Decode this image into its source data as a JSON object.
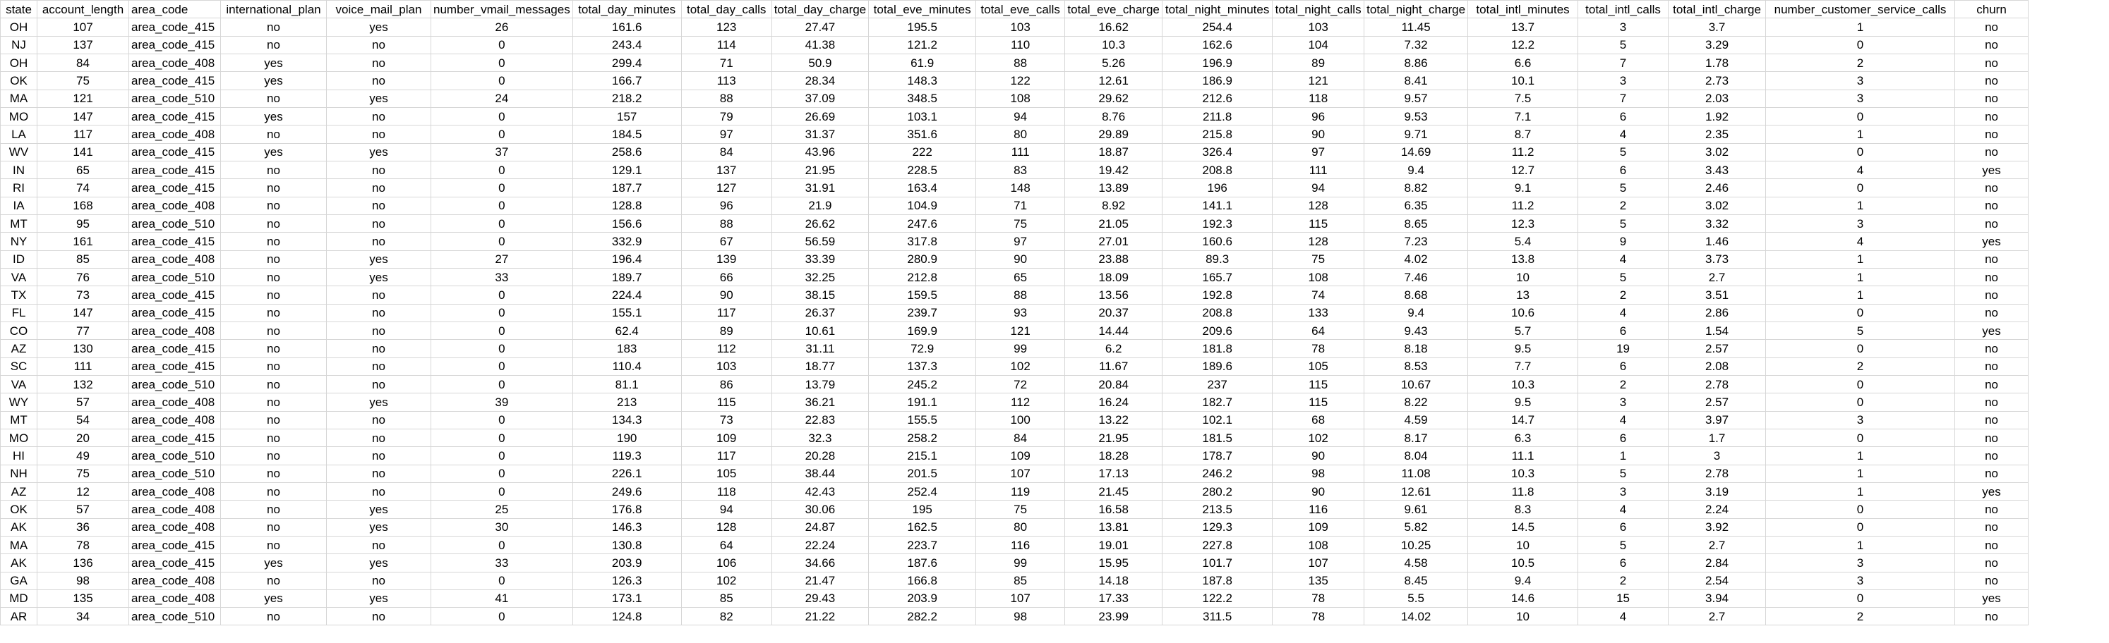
{
  "headers": [
    "state",
    "account_length",
    "area_code",
    "international_plan",
    "voice_mail_plan",
    "number_vmail_messages",
    "total_day_minutes",
    "total_day_calls",
    "total_day_charge",
    "total_eve_minutes",
    "total_eve_calls",
    "total_eve_charge",
    "total_night_minutes",
    "total_night_calls",
    "total_night_charge",
    "total_intl_minutes",
    "total_intl_calls",
    "total_intl_charge",
    "number_customer_service_calls",
    "churn"
  ],
  "rows": [
    [
      "OH",
      "107",
      "area_code_415",
      "no",
      "yes",
      "26",
      "161.6",
      "123",
      "27.47",
      "195.5",
      "103",
      "16.62",
      "254.4",
      "103",
      "11.45",
      "13.7",
      "3",
      "3.7",
      "1",
      "no"
    ],
    [
      "NJ",
      "137",
      "area_code_415",
      "no",
      "no",
      "0",
      "243.4",
      "114",
      "41.38",
      "121.2",
      "110",
      "10.3",
      "162.6",
      "104",
      "7.32",
      "12.2",
      "5",
      "3.29",
      "0",
      "no"
    ],
    [
      "OH",
      "84",
      "area_code_408",
      "yes",
      "no",
      "0",
      "299.4",
      "71",
      "50.9",
      "61.9",
      "88",
      "5.26",
      "196.9",
      "89",
      "8.86",
      "6.6",
      "7",
      "1.78",
      "2",
      "no"
    ],
    [
      "OK",
      "75",
      "area_code_415",
      "yes",
      "no",
      "0",
      "166.7",
      "113",
      "28.34",
      "148.3",
      "122",
      "12.61",
      "186.9",
      "121",
      "8.41",
      "10.1",
      "3",
      "2.73",
      "3",
      "no"
    ],
    [
      "MA",
      "121",
      "area_code_510",
      "no",
      "yes",
      "24",
      "218.2",
      "88",
      "37.09",
      "348.5",
      "108",
      "29.62",
      "212.6",
      "118",
      "9.57",
      "7.5",
      "7",
      "2.03",
      "3",
      "no"
    ],
    [
      "MO",
      "147",
      "area_code_415",
      "yes",
      "no",
      "0",
      "157",
      "79",
      "26.69",
      "103.1",
      "94",
      "8.76",
      "211.8",
      "96",
      "9.53",
      "7.1",
      "6",
      "1.92",
      "0",
      "no"
    ],
    [
      "LA",
      "117",
      "area_code_408",
      "no",
      "no",
      "0",
      "184.5",
      "97",
      "31.37",
      "351.6",
      "80",
      "29.89",
      "215.8",
      "90",
      "9.71",
      "8.7",
      "4",
      "2.35",
      "1",
      "no"
    ],
    [
      "WV",
      "141",
      "area_code_415",
      "yes",
      "yes",
      "37",
      "258.6",
      "84",
      "43.96",
      "222",
      "111",
      "18.87",
      "326.4",
      "97",
      "14.69",
      "11.2",
      "5",
      "3.02",
      "0",
      "no"
    ],
    [
      "IN",
      "65",
      "area_code_415",
      "no",
      "no",
      "0",
      "129.1",
      "137",
      "21.95",
      "228.5",
      "83",
      "19.42",
      "208.8",
      "111",
      "9.4",
      "12.7",
      "6",
      "3.43",
      "4",
      "yes"
    ],
    [
      "RI",
      "74",
      "area_code_415",
      "no",
      "no",
      "0",
      "187.7",
      "127",
      "31.91",
      "163.4",
      "148",
      "13.89",
      "196",
      "94",
      "8.82",
      "9.1",
      "5",
      "2.46",
      "0",
      "no"
    ],
    [
      "IA",
      "168",
      "area_code_408",
      "no",
      "no",
      "0",
      "128.8",
      "96",
      "21.9",
      "104.9",
      "71",
      "8.92",
      "141.1",
      "128",
      "6.35",
      "11.2",
      "2",
      "3.02",
      "1",
      "no"
    ],
    [
      "MT",
      "95",
      "area_code_510",
      "no",
      "no",
      "0",
      "156.6",
      "88",
      "26.62",
      "247.6",
      "75",
      "21.05",
      "192.3",
      "115",
      "8.65",
      "12.3",
      "5",
      "3.32",
      "3",
      "no"
    ],
    [
      "NY",
      "161",
      "area_code_415",
      "no",
      "no",
      "0",
      "332.9",
      "67",
      "56.59",
      "317.8",
      "97",
      "27.01",
      "160.6",
      "128",
      "7.23",
      "5.4",
      "9",
      "1.46",
      "4",
      "yes"
    ],
    [
      "ID",
      "85",
      "area_code_408",
      "no",
      "yes",
      "27",
      "196.4",
      "139",
      "33.39",
      "280.9",
      "90",
      "23.88",
      "89.3",
      "75",
      "4.02",
      "13.8",
      "4",
      "3.73",
      "1",
      "no"
    ],
    [
      "VA",
      "76",
      "area_code_510",
      "no",
      "yes",
      "33",
      "189.7",
      "66",
      "32.25",
      "212.8",
      "65",
      "18.09",
      "165.7",
      "108",
      "7.46",
      "10",
      "5",
      "2.7",
      "1",
      "no"
    ],
    [
      "TX",
      "73",
      "area_code_415",
      "no",
      "no",
      "0",
      "224.4",
      "90",
      "38.15",
      "159.5",
      "88",
      "13.56",
      "192.8",
      "74",
      "8.68",
      "13",
      "2",
      "3.51",
      "1",
      "no"
    ],
    [
      "FL",
      "147",
      "area_code_415",
      "no",
      "no",
      "0",
      "155.1",
      "117",
      "26.37",
      "239.7",
      "93",
      "20.37",
      "208.8",
      "133",
      "9.4",
      "10.6",
      "4",
      "2.86",
      "0",
      "no"
    ],
    [
      "CO",
      "77",
      "area_code_408",
      "no",
      "no",
      "0",
      "62.4",
      "89",
      "10.61",
      "169.9",
      "121",
      "14.44",
      "209.6",
      "64",
      "9.43",
      "5.7",
      "6",
      "1.54",
      "5",
      "yes"
    ],
    [
      "AZ",
      "130",
      "area_code_415",
      "no",
      "no",
      "0",
      "183",
      "112",
      "31.11",
      "72.9",
      "99",
      "6.2",
      "181.8",
      "78",
      "8.18",
      "9.5",
      "19",
      "2.57",
      "0",
      "no"
    ],
    [
      "SC",
      "111",
      "area_code_415",
      "no",
      "no",
      "0",
      "110.4",
      "103",
      "18.77",
      "137.3",
      "102",
      "11.67",
      "189.6",
      "105",
      "8.53",
      "7.7",
      "6",
      "2.08",
      "2",
      "no"
    ],
    [
      "VA",
      "132",
      "area_code_510",
      "no",
      "no",
      "0",
      "81.1",
      "86",
      "13.79",
      "245.2",
      "72",
      "20.84",
      "237",
      "115",
      "10.67",
      "10.3",
      "2",
      "2.78",
      "0",
      "no"
    ],
    [
      "WY",
      "57",
      "area_code_408",
      "no",
      "yes",
      "39",
      "213",
      "115",
      "36.21",
      "191.1",
      "112",
      "16.24",
      "182.7",
      "115",
      "8.22",
      "9.5",
      "3",
      "2.57",
      "0",
      "no"
    ],
    [
      "MT",
      "54",
      "area_code_408",
      "no",
      "no",
      "0",
      "134.3",
      "73",
      "22.83",
      "155.5",
      "100",
      "13.22",
      "102.1",
      "68",
      "4.59",
      "14.7",
      "4",
      "3.97",
      "3",
      "no"
    ],
    [
      "MO",
      "20",
      "area_code_415",
      "no",
      "no",
      "0",
      "190",
      "109",
      "32.3",
      "258.2",
      "84",
      "21.95",
      "181.5",
      "102",
      "8.17",
      "6.3",
      "6",
      "1.7",
      "0",
      "no"
    ],
    [
      "HI",
      "49",
      "area_code_510",
      "no",
      "no",
      "0",
      "119.3",
      "117",
      "20.28",
      "215.1",
      "109",
      "18.28",
      "178.7",
      "90",
      "8.04",
      "11.1",
      "1",
      "3",
      "1",
      "no"
    ],
    [
      "NH",
      "75",
      "area_code_510",
      "no",
      "no",
      "0",
      "226.1",
      "105",
      "38.44",
      "201.5",
      "107",
      "17.13",
      "246.2",
      "98",
      "11.08",
      "10.3",
      "5",
      "2.78",
      "1",
      "no"
    ],
    [
      "AZ",
      "12",
      "area_code_408",
      "no",
      "no",
      "0",
      "249.6",
      "118",
      "42.43",
      "252.4",
      "119",
      "21.45",
      "280.2",
      "90",
      "12.61",
      "11.8",
      "3",
      "3.19",
      "1",
      "yes"
    ],
    [
      "OK",
      "57",
      "area_code_408",
      "no",
      "yes",
      "25",
      "176.8",
      "94",
      "30.06",
      "195",
      "75",
      "16.58",
      "213.5",
      "116",
      "9.61",
      "8.3",
      "4",
      "2.24",
      "0",
      "no"
    ],
    [
      "AK",
      "36",
      "area_code_408",
      "no",
      "yes",
      "30",
      "146.3",
      "128",
      "24.87",
      "162.5",
      "80",
      "13.81",
      "129.3",
      "109",
      "5.82",
      "14.5",
      "6",
      "3.92",
      "0",
      "no"
    ],
    [
      "MA",
      "78",
      "area_code_415",
      "no",
      "no",
      "0",
      "130.8",
      "64",
      "22.24",
      "223.7",
      "116",
      "19.01",
      "227.8",
      "108",
      "10.25",
      "10",
      "5",
      "2.7",
      "1",
      "no"
    ],
    [
      "AK",
      "136",
      "area_code_415",
      "yes",
      "yes",
      "33",
      "203.9",
      "106",
      "34.66",
      "187.6",
      "99",
      "15.95",
      "101.7",
      "107",
      "4.58",
      "10.5",
      "6",
      "2.84",
      "3",
      "no"
    ],
    [
      "GA",
      "98",
      "area_code_408",
      "no",
      "no",
      "0",
      "126.3",
      "102",
      "21.47",
      "166.8",
      "85",
      "14.18",
      "187.8",
      "135",
      "8.45",
      "9.4",
      "2",
      "2.54",
      "3",
      "no"
    ],
    [
      "MD",
      "135",
      "area_code_408",
      "yes",
      "yes",
      "41",
      "173.1",
      "85",
      "29.43",
      "203.9",
      "107",
      "17.33",
      "122.2",
      "78",
      "5.5",
      "14.6",
      "15",
      "3.94",
      "0",
      "yes"
    ],
    [
      "AR",
      "34",
      "area_code_510",
      "no",
      "no",
      "0",
      "124.8",
      "82",
      "21.22",
      "282.2",
      "98",
      "23.99",
      "311.5",
      "78",
      "14.02",
      "10",
      "4",
      "2.7",
      "2",
      "no"
    ]
  ]
}
